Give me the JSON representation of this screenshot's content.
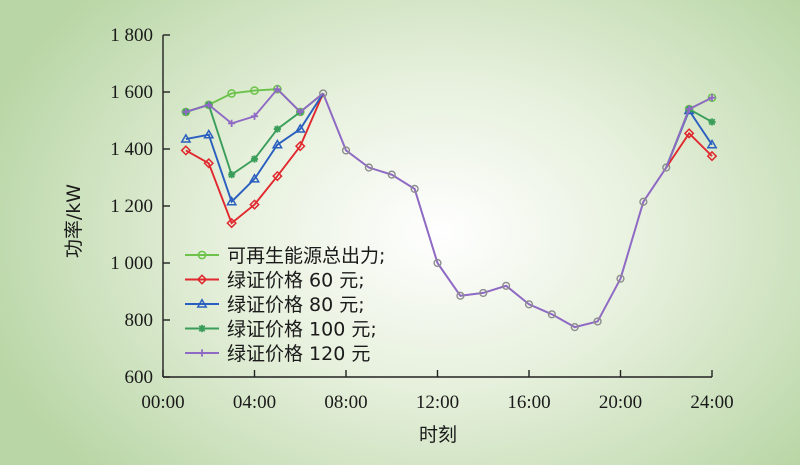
{
  "chart_data": {
    "type": "line",
    "xlabel": "时刻",
    "ylabel": "功率/kW",
    "xlim": [
      0,
      24
    ],
    "ylim": [
      600,
      1800
    ],
    "x_ticks": [
      0,
      4,
      8,
      12,
      16,
      20,
      24
    ],
    "x_tick_labels": [
      "00:00",
      "04:00",
      "08:00",
      "12:00",
      "16:00",
      "20:00",
      "24:00"
    ],
    "y_ticks": [
      600,
      800,
      1000,
      1200,
      1400,
      1600,
      1800
    ],
    "y_tick_labels": [
      "600",
      "800",
      "1 000",
      "1 200",
      "1 400",
      "1 600",
      "1 800"
    ],
    "grid": false,
    "legend_position": "bottom-left",
    "common": {
      "x": [
        7,
        8,
        9,
        10,
        11,
        12,
        13,
        14,
        15,
        16,
        17,
        18,
        19,
        20,
        21,
        22
      ],
      "y": [
        1595,
        1395,
        1335,
        1310,
        1260,
        1000,
        885,
        895,
        920,
        855,
        820,
        775,
        795,
        945,
        1215,
        1335
      ]
    },
    "series": [
      {
        "name": "可再生能源总出力;",
        "color": "#6cc24a",
        "marker": "circle",
        "x": [
          1,
          2,
          3,
          4,
          5,
          6,
          23,
          24
        ],
        "y": [
          1530,
          1555,
          1595,
          1605,
          1610,
          1530,
          1540,
          1580
        ]
      },
      {
        "name": "绿证价格 60 元;",
        "color": "#e0282e",
        "marker": "diamond",
        "x": [
          1,
          2,
          3,
          4,
          5,
          6,
          23,
          24
        ],
        "y": [
          1395,
          1350,
          1140,
          1205,
          1305,
          1410,
          1455,
          1375
        ]
      },
      {
        "name": "绿证价格 80 元;",
        "color": "#2a5fbf",
        "marker": "triangle",
        "x": [
          1,
          2,
          3,
          4,
          5,
          6,
          23,
          24
        ],
        "y": [
          1435,
          1450,
          1215,
          1295,
          1415,
          1470,
          1535,
          1415
        ]
      },
      {
        "name": "绿证价格 100 元;",
        "color": "#3a9e5a",
        "marker": "asterisk",
        "x": [
          1,
          2,
          3,
          4,
          5,
          6,
          23,
          24
        ],
        "y": [
          1530,
          1555,
          1310,
          1365,
          1470,
          1530,
          1540,
          1495
        ]
      },
      {
        "name": "绿证价格 120 元",
        "color": "#8f6ac4",
        "marker": "plus",
        "x": [
          1,
          2,
          3,
          4,
          5,
          6,
          23,
          24
        ],
        "y": [
          1530,
          1555,
          1490,
          1515,
          1610,
          1530,
          1540,
          1580
        ]
      }
    ]
  }
}
